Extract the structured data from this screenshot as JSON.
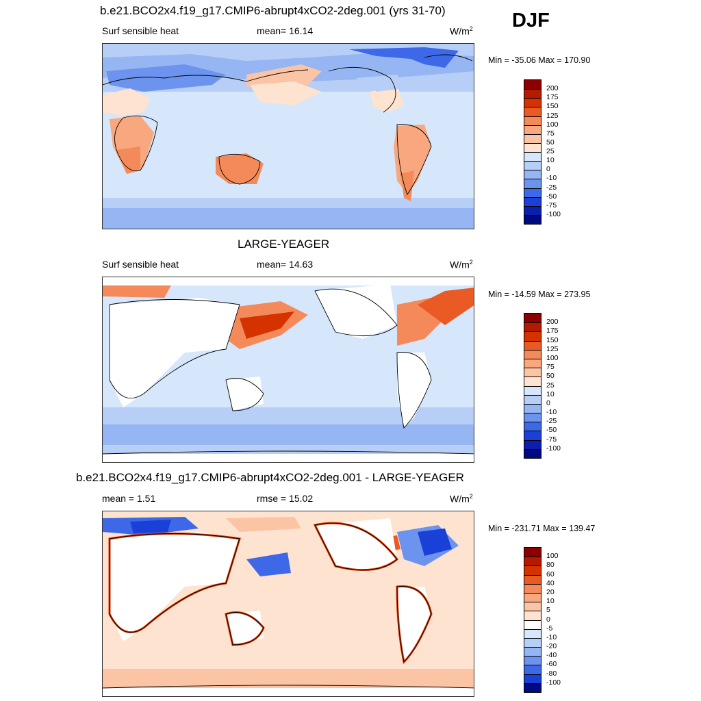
{
  "header": {
    "case_title": "b.e21.BCO2x4.f19_g17.CMIP6-abrupt4xCO2-2deg.001 (yrs 31-70)",
    "season": "DJF"
  },
  "panels": [
    {
      "title": "",
      "variable": "Surf sensible heat",
      "stat": "mean=  16.14",
      "units": "W/m",
      "units_exp": "2",
      "minmax": "Min = -35.06 Max = 170.90",
      "levels": [
        "200",
        "175",
        "150",
        "125",
        "100",
        "75",
        "50",
        "25",
        "10",
        "0",
        "-10",
        "-25",
        "-50",
        "-75",
        "-100"
      ],
      "colors": [
        "#8b0000",
        "#b41a00",
        "#d43300",
        "#ea5a24",
        "#f48a5a",
        "#f8a77e",
        "#fbc4a4",
        "#fde3d0",
        "#d6e6fb",
        "#b7cff7",
        "#95b5f3",
        "#6c93ee",
        "#3d69e8",
        "#1a40d8",
        "#0a1fb0",
        "#000a80"
      ]
    },
    {
      "title": "LARGE-YEAGER",
      "variable": "Surf sensible heat",
      "stat": "mean=  14.63",
      "units": "W/m",
      "units_exp": "2",
      "minmax": "Min = -14.59 Max = 273.95",
      "levels": [
        "200",
        "175",
        "150",
        "125",
        "100",
        "75",
        "50",
        "25",
        "10",
        "0",
        "-10",
        "-25",
        "-50",
        "-75",
        "-100"
      ],
      "colors": [
        "#8b0000",
        "#b41a00",
        "#d43300",
        "#ea5a24",
        "#f48a5a",
        "#f8a77e",
        "#fbc4a4",
        "#fde3d0",
        "#d6e6fb",
        "#b7cff7",
        "#95b5f3",
        "#6c93ee",
        "#3d69e8",
        "#1a40d8",
        "#0a1fb0",
        "#000a80"
      ]
    },
    {
      "title": "b.e21.BCO2x4.f19_g17.CMIP6-abrupt4xCO2-2deg.001 - LARGE-YEAGER",
      "variable": "mean =   1.51",
      "stat": "rmse =  15.02",
      "units": "W/m",
      "units_exp": "2",
      "minmax": "Min = -231.71 Max = 139.47",
      "levels": [
        "100",
        "80",
        "60",
        "40",
        "20",
        "10",
        "5",
        "0",
        "-5",
        "-10",
        "-20",
        "-40",
        "-60",
        "-80",
        "-100"
      ],
      "colors": [
        "#8b0000",
        "#b41a00",
        "#d43300",
        "#ea5a24",
        "#f48a5a",
        "#f8a77e",
        "#fbc4a4",
        "#fde3d0",
        "#ffffff",
        "#d6e6fb",
        "#b7cff7",
        "#95b5f3",
        "#6c93ee",
        "#3d69e8",
        "#1a40d8",
        "#000a80"
      ]
    }
  ],
  "map_colors": {
    "ocean_light": "#d6e6fb",
    "ocean_mid": "#b7cff7",
    "ocean_deep": "#95b5f3",
    "warm_light": "#fde3d0",
    "warm_mid": "#fbc4a4",
    "warm_strong": "#f48a5a",
    "cold_strong": "#3d69e8",
    "land_empty": "#ffffff",
    "coast": "#000000"
  }
}
